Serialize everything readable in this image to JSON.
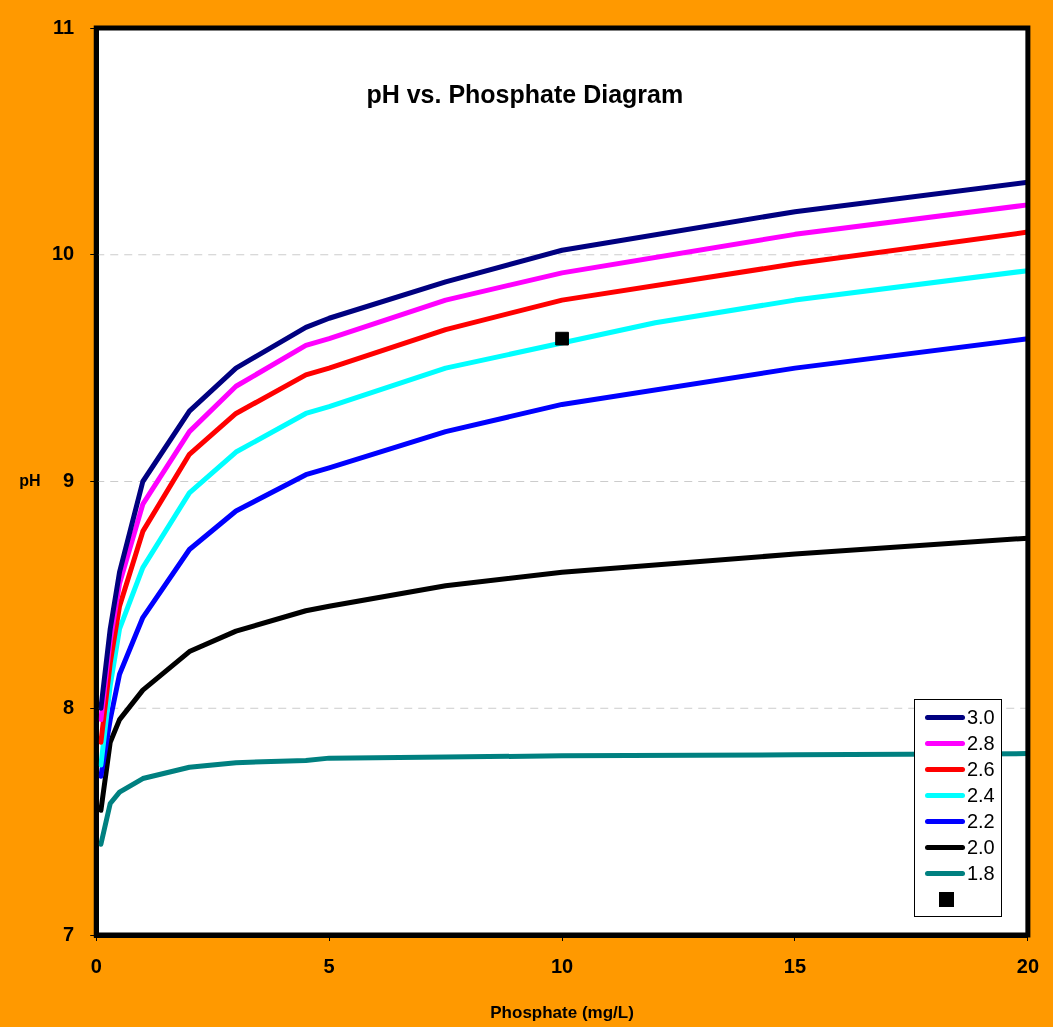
{
  "chart_data": {
    "type": "line",
    "title": "pH vs. Phosphate Diagram",
    "xlabel": "Phosphate (mg/L)",
    "ylabel": "pH",
    "x": [
      0.1,
      0.3,
      0.5,
      1,
      2,
      3,
      4.5,
      5,
      7.5,
      10,
      15,
      20
    ],
    "xlim": [
      0,
      20
    ],
    "xticks": [
      0,
      5,
      10,
      15,
      20
    ],
    "ylim": [
      7,
      11
    ],
    "yticks": [
      7,
      8,
      9,
      10,
      11
    ],
    "grid": "y",
    "legend": "bottom right",
    "marker": "none",
    "line_style": "solid",
    "series": [
      {
        "name": "3.0",
        "color": "#000080",
        "values": [
          8.0,
          8.35,
          8.6,
          9.0,
          9.31,
          9.5,
          9.68,
          9.72,
          9.88,
          10.02,
          10.19,
          10.32
        ]
      },
      {
        "name": "2.8",
        "color": "#ff00ff",
        "values": [
          7.95,
          8.3,
          8.55,
          8.9,
          9.22,
          9.42,
          9.6,
          9.63,
          9.8,
          9.92,
          10.09,
          10.22
        ]
      },
      {
        "name": "2.6",
        "color": "#ff0000",
        "values": [
          7.85,
          8.2,
          8.45,
          8.78,
          9.12,
          9.3,
          9.47,
          9.5,
          9.67,
          9.8,
          9.96,
          10.1
        ]
      },
      {
        "name": "2.4",
        "color": "#00ffff",
        "x": [
          0.1,
          0.3,
          0.5,
          1,
          2,
          3,
          4.5,
          5,
          7.5,
          12,
          15,
          20
        ],
        "values": [
          7.75,
          8.1,
          8.35,
          8.62,
          8.95,
          9.13,
          9.3,
          9.33,
          9.5,
          9.7,
          9.8,
          9.93
        ]
      },
      {
        "name": "2.2",
        "color": "#0000ff",
        "values": [
          7.7,
          7.95,
          8.15,
          8.4,
          8.7,
          8.87,
          9.03,
          9.06,
          9.22,
          9.34,
          9.5,
          9.63
        ]
      },
      {
        "name": "2.0",
        "color": "#000000",
        "values": [
          7.55,
          7.85,
          7.95,
          8.08,
          8.25,
          8.34,
          8.43,
          8.45,
          8.54,
          8.6,
          8.68,
          8.75
        ]
      },
      {
        "name": "1.8",
        "color": "#008080",
        "values": [
          7.4,
          7.58,
          7.63,
          7.69,
          7.74,
          7.76,
          7.77,
          7.78,
          7.785,
          7.79,
          7.795,
          7.8
        ]
      },
      {
        "type": "scatter",
        "marker": "square",
        "color": "#000000",
        "x": [
          10
        ],
        "values": [
          9.63
        ]
      }
    ]
  }
}
